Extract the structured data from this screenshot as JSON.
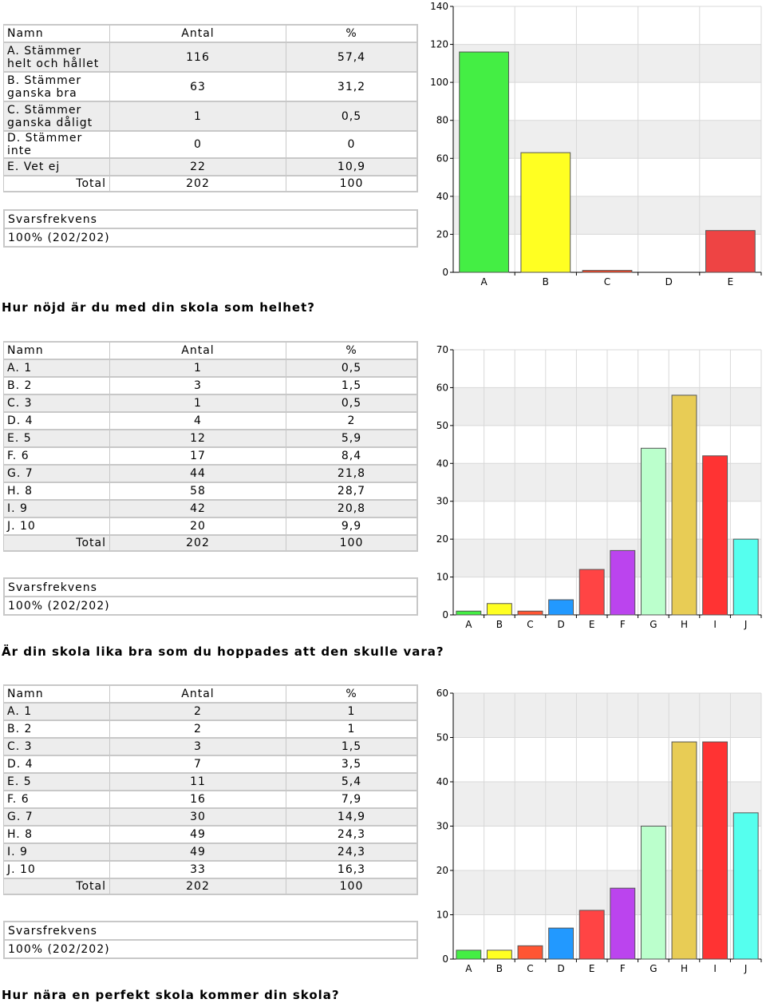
{
  "table_headers": {
    "name": "Namn",
    "count": "Antal",
    "percent": "%"
  },
  "total_label": "Total",
  "freq_label": "Svarsfrekvens",
  "sections": [
    {
      "rows": [
        {
          "name": "A. Stämmer helt och hållet",
          "count": "116",
          "percent": "57,4"
        },
        {
          "name": "B. Stämmer ganska bra",
          "count": "63",
          "percent": "31,2"
        },
        {
          "name": "C. Stämmer ganska dåligt",
          "count": "1",
          "percent": "0,5"
        },
        {
          "name": "D. Stämmer inte",
          "count": "0",
          "percent": "0"
        },
        {
          "name": "E. Vet ej",
          "count": "22",
          "percent": "10,9"
        }
      ],
      "total": {
        "count": "202",
        "percent": "100"
      },
      "freq_value": "100% (202/202)",
      "question_after": "Hur nöjd är du med din skola som helhet?"
    },
    {
      "rows": [
        {
          "name": "A. 1",
          "count": "1",
          "percent": "0,5"
        },
        {
          "name": "B. 2",
          "count": "3",
          "percent": "1,5"
        },
        {
          "name": "C. 3",
          "count": "1",
          "percent": "0,5"
        },
        {
          "name": "D. 4",
          "count": "4",
          "percent": "2"
        },
        {
          "name": "E. 5",
          "count": "12",
          "percent": "5,9"
        },
        {
          "name": "F. 6",
          "count": "17",
          "percent": "8,4"
        },
        {
          "name": "G. 7",
          "count": "44",
          "percent": "21,8"
        },
        {
          "name": "H. 8",
          "count": "58",
          "percent": "28,7"
        },
        {
          "name": "I. 9",
          "count": "42",
          "percent": "20,8"
        },
        {
          "name": "J. 10",
          "count": "20",
          "percent": "9,9"
        }
      ],
      "total": {
        "count": "202",
        "percent": "100"
      },
      "freq_value": "100% (202/202)",
      "question_after": "Är din skola lika bra som du hoppades att den skulle vara?"
    },
    {
      "rows": [
        {
          "name": "A. 1",
          "count": "2",
          "percent": "1"
        },
        {
          "name": "B. 2",
          "count": "2",
          "percent": "1"
        },
        {
          "name": "C. 3",
          "count": "3",
          "percent": "1,5"
        },
        {
          "name": "D. 4",
          "count": "7",
          "percent": "3,5"
        },
        {
          "name": "E. 5",
          "count": "11",
          "percent": "5,4"
        },
        {
          "name": "F. 6",
          "count": "16",
          "percent": "7,9"
        },
        {
          "name": "G. 7",
          "count": "30",
          "percent": "14,9"
        },
        {
          "name": "H. 8",
          "count": "49",
          "percent": "24,3"
        },
        {
          "name": "I. 9",
          "count": "49",
          "percent": "24,3"
        },
        {
          "name": "J. 10",
          "count": "33",
          "percent": "16,3"
        }
      ],
      "total": {
        "count": "202",
        "percent": "100"
      },
      "freq_value": "100% (202/202)",
      "question_after": "Hur nära en perfekt skola kommer din skola?"
    }
  ],
  "chart_data": [
    {
      "type": "bar",
      "categories": [
        "A",
        "B",
        "C",
        "D",
        "E"
      ],
      "values": [
        116,
        63,
        1,
        0,
        22
      ],
      "ylim": [
        0,
        140
      ],
      "yticks": [
        0,
        20,
        40,
        60,
        80,
        100,
        120,
        140
      ],
      "colors": [
        "#44ee44",
        "#ffff22",
        "#ff4422",
        "#cccccc",
        "#ee4444"
      ],
      "grid": true
    },
    {
      "type": "bar",
      "categories": [
        "A",
        "B",
        "C",
        "D",
        "E",
        "F",
        "G",
        "H",
        "I",
        "J"
      ],
      "values": [
        1,
        3,
        1,
        4,
        12,
        17,
        44,
        58,
        42,
        20
      ],
      "ylim": [
        0,
        70
      ],
      "yticks": [
        0,
        10,
        20,
        30,
        40,
        50,
        60,
        70
      ],
      "colors": [
        "#44ee44",
        "#ffff22",
        "#ff5533",
        "#2299ff",
        "#ff4444",
        "#bb44ee",
        "#bbffcc",
        "#e8cc55",
        "#ff3333",
        "#55ffee"
      ],
      "grid": true
    },
    {
      "type": "bar",
      "categories": [
        "A",
        "B",
        "C",
        "D",
        "E",
        "F",
        "G",
        "H",
        "I",
        "J"
      ],
      "values": [
        2,
        2,
        3,
        7,
        11,
        16,
        30,
        49,
        49,
        33
      ],
      "ylim": [
        0,
        60
      ],
      "yticks": [
        0,
        10,
        20,
        30,
        40,
        50,
        60
      ],
      "colors": [
        "#44ee44",
        "#ffff22",
        "#ff5533",
        "#2299ff",
        "#ff4444",
        "#bb44ee",
        "#bbffcc",
        "#e8cc55",
        "#ff3333",
        "#55ffee"
      ],
      "grid": true
    }
  ]
}
